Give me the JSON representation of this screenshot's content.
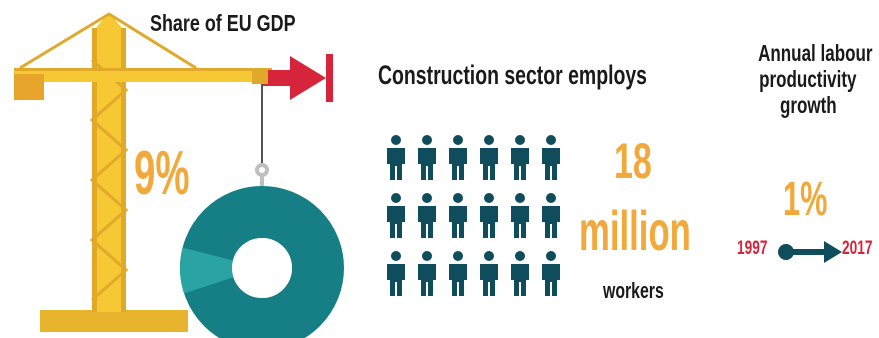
{
  "share": {
    "title": "Share of EU GDP",
    "value": "9%",
    "value_fraction": 0.09
  },
  "employment": {
    "title": "Construction sector employs",
    "number": "18",
    "unit": "million",
    "label": "workers",
    "icon": "person-icon"
  },
  "productivity": {
    "title_lines": [
      "Annual labour",
      "productivity",
      "growth"
    ],
    "value": "1%",
    "year_start": "1997",
    "year_end": "2017"
  },
  "colors": {
    "crane": "#f5c834",
    "crane_shadow": "#e0a92a",
    "accent_orange": "#f2a93b",
    "teal": "#167f86",
    "teal_dark": "#0f4d5c",
    "red": "#d6243a",
    "text": "#1a1a1a"
  }
}
